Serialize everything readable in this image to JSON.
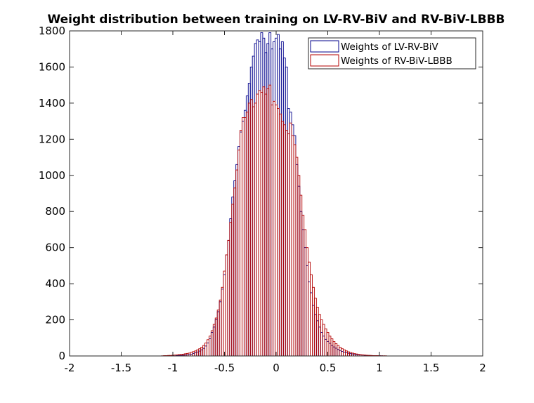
{
  "chart_data": {
    "type": "bar",
    "subtype": "overlaid-histogram",
    "title": "Weight distribution between training on LV-RV-BiV and RV-BiV-LBBB",
    "xlabel": "",
    "ylabel": "",
    "xlim": [
      -2,
      2
    ],
    "ylim": [
      0,
      1800
    ],
    "xticks": [
      "-2",
      "-1.5",
      "-1",
      "-0.5",
      "0",
      "0.5",
      "1",
      "1.5",
      "2"
    ],
    "yticks": [
      "0",
      "200",
      "400",
      "600",
      "800",
      "1000",
      "1200",
      "1400",
      "1600",
      "1800"
    ],
    "xtick_values": [
      -2,
      -1.5,
      -1,
      -0.5,
      0,
      0.5,
      1,
      1.5,
      2
    ],
    "ytick_values": [
      0,
      200,
      400,
      600,
      800,
      1000,
      1200,
      1400,
      1600,
      1800
    ],
    "grid": false,
    "legend_position": "top-right",
    "bin_centers": [
      -1.1,
      -1.08,
      -1.06,
      -1.04,
      -1.02,
      -1.0,
      -0.98,
      -0.96,
      -0.94,
      -0.92,
      -0.9,
      -0.88,
      -0.86,
      -0.84,
      -0.82,
      -0.8,
      -0.78,
      -0.76,
      -0.74,
      -0.72,
      -0.7,
      -0.68,
      -0.66,
      -0.64,
      -0.62,
      -0.6,
      -0.58,
      -0.56,
      -0.54,
      -0.52,
      -0.5,
      -0.48,
      -0.46,
      -0.44,
      -0.42,
      -0.4,
      -0.38,
      -0.36,
      -0.34,
      -0.32,
      -0.3,
      -0.28,
      -0.26,
      -0.24,
      -0.22,
      -0.2,
      -0.18,
      -0.16,
      -0.14,
      -0.12,
      -0.1,
      -0.08,
      -0.06,
      -0.04,
      -0.02,
      0.0,
      0.02,
      0.04,
      0.06,
      0.08,
      0.1,
      0.12,
      0.14,
      0.16,
      0.18,
      0.2,
      0.22,
      0.24,
      0.26,
      0.28,
      0.3,
      0.32,
      0.34,
      0.36,
      0.38,
      0.4,
      0.42,
      0.44,
      0.46,
      0.48,
      0.5,
      0.52,
      0.54,
      0.56,
      0.58,
      0.6,
      0.62,
      0.64,
      0.66,
      0.68,
      0.7,
      0.72,
      0.74,
      0.76,
      0.78,
      0.8,
      0.82,
      0.84,
      0.86,
      0.88,
      0.9,
      0.92,
      0.94,
      0.96,
      0.98,
      1.0,
      1.02,
      1.04,
      1.06,
      1.08,
      1.1,
      1.12,
      1.14,
      1.16
    ],
    "bin_width": 0.02,
    "series": [
      {
        "name": "Weights of LV-RV-BiV",
        "color": "#00008b",
        "values": [
          0,
          0,
          0,
          0,
          0,
          1,
          1,
          2,
          3,
          3,
          4,
          5,
          6,
          8,
          10,
          14,
          18,
          22,
          27,
          34,
          42,
          55,
          72,
          96,
          130,
          160,
          200,
          245,
          300,
          370,
          450,
          560,
          640,
          760,
          880,
          970,
          1060,
          1160,
          1240,
          1300,
          1360,
          1440,
          1510,
          1600,
          1660,
          1730,
          1750,
          1740,
          1790,
          1760,
          1680,
          1730,
          1790,
          1700,
          1740,
          1760,
          1780,
          1700,
          1740,
          1650,
          1600,
          1370,
          1350,
          1280,
          1220,
          1060,
          940,
          800,
          700,
          600,
          500,
          410,
          350,
          280,
          230,
          195,
          160,
          130,
          110,
          92,
          80,
          70,
          58,
          50,
          43,
          36,
          30,
          25,
          21,
          18,
          15,
          13,
          11,
          10,
          8,
          7,
          6,
          5,
          4,
          3,
          3,
          2,
          2,
          1,
          1,
          1,
          1,
          0,
          0,
          0,
          0,
          0,
          0,
          0,
          0,
          0
        ],
        "visible_extra_values": {
          "note": ""
        }
      },
      {
        "name": "Weights of RV-BiV-LBBB",
        "color": "#b30000",
        "values": [
          1,
          2,
          2,
          3,
          3,
          4,
          5,
          6,
          8,
          9,
          10,
          12,
          14,
          16,
          20,
          24,
          28,
          34,
          40,
          48,
          58,
          72,
          90,
          110,
          140,
          175,
          210,
          255,
          310,
          380,
          470,
          560,
          640,
          740,
          840,
          930,
          1030,
          1140,
          1250,
          1320,
          1320,
          1350,
          1400,
          1420,
          1380,
          1400,
          1450,
          1470,
          1460,
          1490,
          1450,
          1480,
          1500,
          1390,
          1410,
          1390,
          1370,
          1340,
          1300,
          1280,
          1250,
          1230,
          1290,
          1220,
          1170,
          1100,
          1000,
          890,
          780,
          700,
          600,
          520,
          450,
          380,
          320,
          270,
          230,
          200,
          175,
          150,
          130,
          110,
          95,
          80,
          68,
          58,
          48,
          40,
          34,
          28,
          23,
          19,
          16,
          13,
          11,
          9,
          7,
          6,
          5,
          4,
          3,
          3,
          2,
          2,
          2,
          1,
          1,
          1,
          1,
          0,
          0,
          0,
          0,
          0
        ]
      }
    ]
  }
}
